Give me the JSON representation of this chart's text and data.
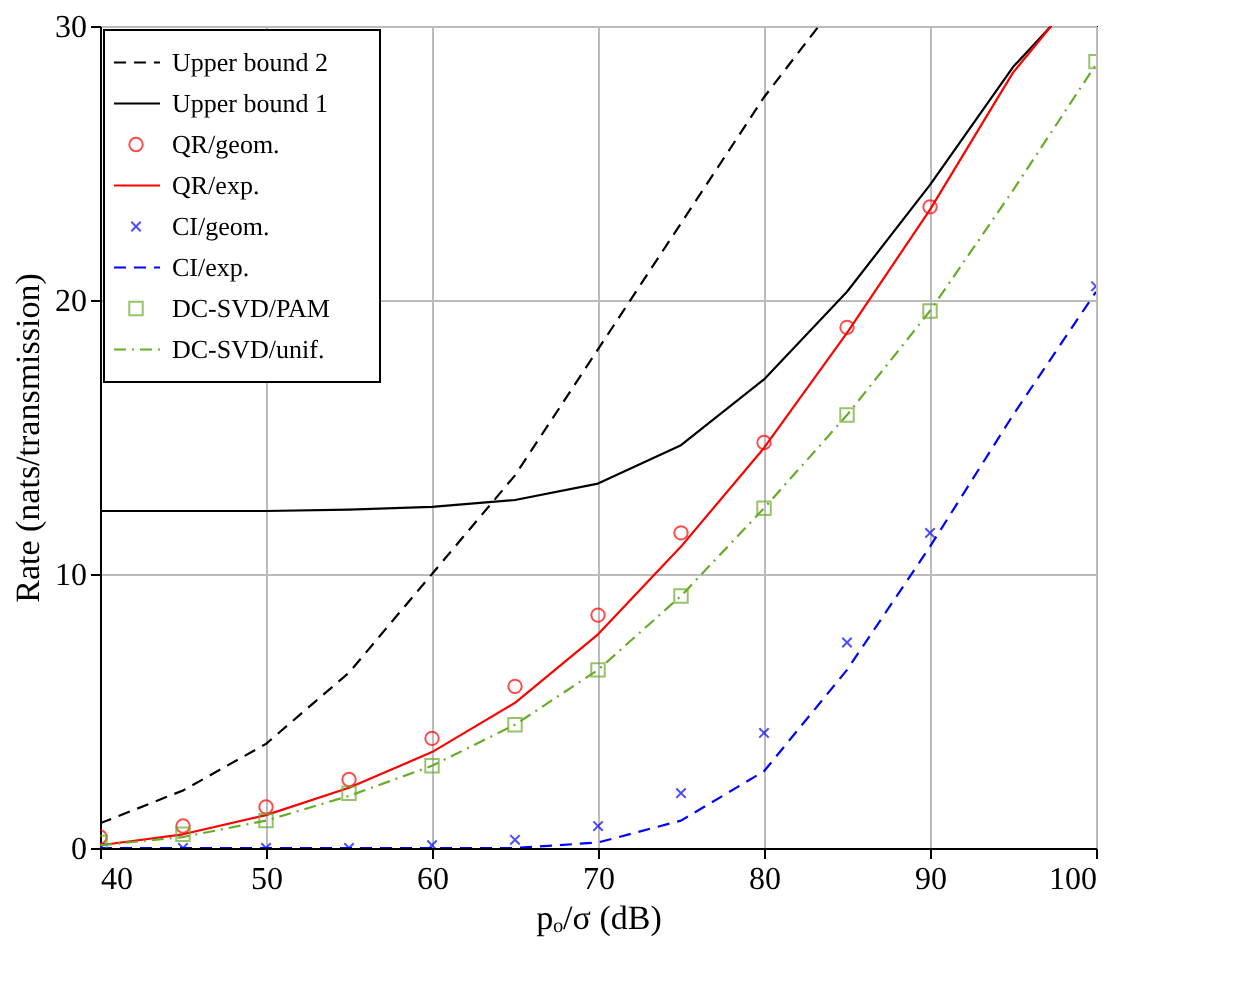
{
  "chart_data": {
    "type": "line",
    "xlabel": "pₒ/σ (dB)",
    "ylabel": "Rate (nats/transmission)",
    "xlim": [
      40,
      100
    ],
    "ylim": [
      0,
      30
    ],
    "xticks": [
      40,
      50,
      60,
      70,
      80,
      90,
      100
    ],
    "yticks": [
      0,
      10,
      20,
      30
    ],
    "grid": true,
    "legend": "top left",
    "series": [
      {
        "name": "Upper bound 2",
        "color": "#000000",
        "line_style": "dashed",
        "x": [
          40,
          45,
          50,
          55,
          60,
          65,
          70,
          75,
          80,
          83.3
        ],
        "values": [
          0.9,
          2.1,
          3.8,
          6.4,
          10,
          13.6,
          18.2,
          22.8,
          27.4,
          30
        ]
      },
      {
        "name": "Upper bound 1",
        "color": "#000000",
        "line_style": "solid",
        "x": [
          40,
          45,
          50,
          55,
          60,
          65,
          70,
          75,
          80,
          85,
          90,
          95,
          97.3
        ],
        "values": [
          12.3,
          12.3,
          12.3,
          12.35,
          12.45,
          12.7,
          13.3,
          14.7,
          17.1,
          20.3,
          24.2,
          28.5,
          30
        ]
      },
      {
        "name": "QR/geom.",
        "type": "scatter",
        "color": "#ff0000",
        "marker": "circle",
        "x": [
          40,
          45,
          50,
          55,
          60,
          65,
          70,
          75,
          80,
          85,
          90
        ],
        "values": [
          0.4,
          0.8,
          1.5,
          2.5,
          4.0,
          5.9,
          8.5,
          11.5,
          14.8,
          19.0,
          23.4
        ]
      },
      {
        "name": "QR/exp.",
        "color": "#ff0000",
        "line_style": "solid",
        "x": [
          40,
          45,
          50,
          55,
          60,
          65,
          70,
          75,
          80,
          85,
          90,
          95,
          97.3
        ],
        "values": [
          0.1,
          0.5,
          1.2,
          2.2,
          3.5,
          5.3,
          7.8,
          11.0,
          14.6,
          18.8,
          23.3,
          28.3,
          30
        ]
      },
      {
        "name": "CI/geom.",
        "type": "scatter",
        "color": "#0000ff",
        "marker": "cross",
        "x": [
          40,
          45,
          50,
          55,
          60,
          65,
          70,
          75,
          80,
          85,
          90,
          100
        ],
        "values": [
          0,
          0,
          0,
          0,
          0.1,
          0.3,
          0.8,
          2.0,
          4.2,
          7.5,
          11.5,
          20.5
        ]
      },
      {
        "name": "CI/exp.",
        "color": "#0000ff",
        "line_style": "dashed",
        "x": [
          40,
          45,
          50,
          55,
          60,
          65,
          70,
          75,
          80,
          85,
          90,
          95,
          100
        ],
        "values": [
          0,
          0,
          0,
          0,
          0,
          0,
          0.2,
          1.0,
          2.8,
          6.5,
          11.0,
          15.8,
          20.3
        ]
      },
      {
        "name": "DC-SVD/PAM",
        "type": "scatter",
        "color": "#6aaa2a",
        "marker": "square",
        "x": [
          40,
          45,
          50,
          55,
          60,
          65,
          70,
          75,
          80,
          85,
          90,
          100
        ],
        "values": [
          0.2,
          0.5,
          1.0,
          2.0,
          3.0,
          4.5,
          6.5,
          9.2,
          12.4,
          15.8,
          19.6,
          28.7
        ]
      },
      {
        "name": "DC-SVD/unif.",
        "color": "#6aaa2a",
        "line_style": "dashdot",
        "x": [
          40,
          45,
          50,
          55,
          60,
          65,
          70,
          75,
          80,
          85,
          90,
          95,
          100
        ],
        "values": [
          0.1,
          0.4,
          1.0,
          1.9,
          3.0,
          4.5,
          6.5,
          9.2,
          12.4,
          15.8,
          19.6,
          24.0,
          28.6
        ]
      }
    ]
  }
}
